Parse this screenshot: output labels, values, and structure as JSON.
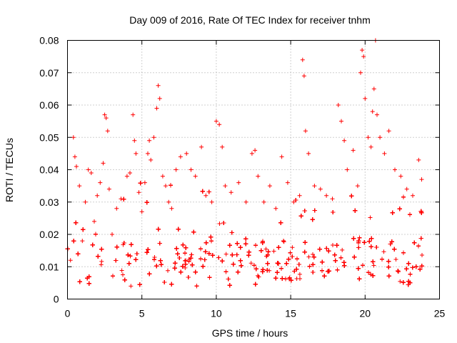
{
  "chart_data": {
    "type": "scatter",
    "title": "Day 009 of 2016, Rate Of TEC Index for receiver tnhm",
    "xlabel": "GPS time / hours",
    "ylabel": "ROTI / TECUs",
    "xlim": [
      0,
      25
    ],
    "ylim": [
      0,
      0.08
    ],
    "x_ticks": [
      0,
      5,
      10,
      15,
      20,
      25
    ],
    "y_ticks": [
      0,
      0.01,
      0.02,
      0.03,
      0.04,
      0.05,
      0.06,
      0.07,
      0.08
    ],
    "x_tick_labels": [
      "0",
      "5",
      "10",
      "15",
      "20",
      "25"
    ],
    "y_tick_labels": [
      "0",
      "0.01",
      "0.02",
      "0.03",
      "0.04",
      "0.05",
      "0.06",
      "0.07",
      "0.08"
    ],
    "grid": true,
    "marker": "+",
    "marker_color": "#ff0000",
    "data_range_x": [
      0,
      23.9
    ],
    "points": [
      [
        0.2,
        0.012
      ],
      [
        0.4,
        0.05
      ],
      [
        0.5,
        0.044
      ],
      [
        0.6,
        0.041
      ],
      [
        0.8,
        0.035
      ],
      [
        1.0,
        0.018
      ],
      [
        1.2,
        0.03
      ],
      [
        1.4,
        0.04
      ],
      [
        1.6,
        0.039
      ],
      [
        1.8,
        0.024
      ],
      [
        2.0,
        0.032
      ],
      [
        2.2,
        0.036
      ],
      [
        2.4,
        0.042
      ],
      [
        2.5,
        0.057
      ],
      [
        2.6,
        0.056
      ],
      [
        2.7,
        0.052
      ],
      [
        2.8,
        0.034
      ],
      [
        3.0,
        0.02
      ],
      [
        3.3,
        0.028
      ],
      [
        3.6,
        0.031
      ],
      [
        4.0,
        0.038
      ],
      [
        4.2,
        0.039
      ],
      [
        4.4,
        0.057
      ],
      [
        4.5,
        0.049
      ],
      [
        4.6,
        0.045
      ],
      [
        4.8,
        0.033
      ],
      [
        5.0,
        0.027
      ],
      [
        5.2,
        0.036
      ],
      [
        5.4,
        0.045
      ],
      [
        5.5,
        0.049
      ],
      [
        5.6,
        0.043
      ],
      [
        5.8,
        0.05
      ],
      [
        6.0,
        0.059
      ],
      [
        6.1,
        0.066
      ],
      [
        6.2,
        0.062
      ],
      [
        6.4,
        0.038
      ],
      [
        6.6,
        0.035
      ],
      [
        6.8,
        0.03
      ],
      [
        7.0,
        0.028
      ],
      [
        7.3,
        0.04
      ],
      [
        7.6,
        0.044
      ],
      [
        8.0,
        0.045
      ],
      [
        8.3,
        0.04
      ],
      [
        8.6,
        0.038
      ],
      [
        9.0,
        0.047
      ],
      [
        9.3,
        0.032
      ],
      [
        9.7,
        0.03
      ],
      [
        10.0,
        0.055
      ],
      [
        10.2,
        0.054
      ],
      [
        10.4,
        0.047
      ],
      [
        10.6,
        0.035
      ],
      [
        11.0,
        0.033
      ],
      [
        11.5,
        0.036
      ],
      [
        12.0,
        0.03
      ],
      [
        12.4,
        0.045
      ],
      [
        12.6,
        0.046
      ],
      [
        12.8,
        0.038
      ],
      [
        13.2,
        0.03
      ],
      [
        13.6,
        0.035
      ],
      [
        14.0,
        0.028
      ],
      [
        14.4,
        0.044
      ],
      [
        14.8,
        0.036
      ],
      [
        15.2,
        0.03
      ],
      [
        15.6,
        0.032
      ],
      [
        15.8,
        0.074
      ],
      [
        15.9,
        0.069
      ],
      [
        16.0,
        0.052
      ],
      [
        16.2,
        0.045
      ],
      [
        16.6,
        0.035
      ],
      [
        17.0,
        0.034
      ],
      [
        17.4,
        0.032
      ],
      [
        17.8,
        0.031
      ],
      [
        18.2,
        0.06
      ],
      [
        18.4,
        0.055
      ],
      [
        18.6,
        0.049
      ],
      [
        18.8,
        0.04
      ],
      [
        19.2,
        0.046
      ],
      [
        19.5,
        0.035
      ],
      [
        19.7,
        0.07
      ],
      [
        19.8,
        0.077
      ],
      [
        19.9,
        0.075
      ],
      [
        20.0,
        0.062
      ],
      [
        20.2,
        0.05
      ],
      [
        20.4,
        0.047
      ],
      [
        20.5,
        0.058
      ],
      [
        20.6,
        0.065
      ],
      [
        20.7,
        0.08
      ],
      [
        20.8,
        0.057
      ],
      [
        21.0,
        0.05
      ],
      [
        21.3,
        0.045
      ],
      [
        21.6,
        0.052
      ],
      [
        22.0,
        0.04
      ],
      [
        22.4,
        0.038
      ],
      [
        22.8,
        0.034
      ],
      [
        23.2,
        0.032
      ],
      [
        23.6,
        0.043
      ],
      [
        23.8,
        0.037
      ]
    ]
  }
}
